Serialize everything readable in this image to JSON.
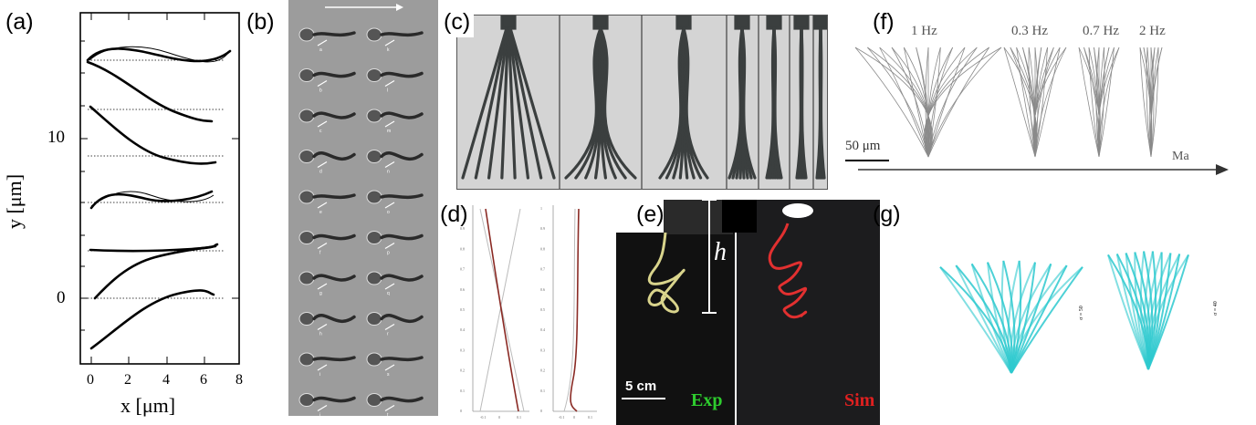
{
  "figure": {
    "panels": {
      "a": {
        "label": "(a)",
        "xlabel": "x [μm]",
        "ylabel": "y [μm]",
        "xticks": [
          "0",
          "2",
          "4",
          "6",
          "8"
        ],
        "yticks": [
          "0",
          "10"
        ]
      },
      "b": {
        "label": "(b)",
        "frames_left": [
          "a",
          "b",
          "c",
          "d",
          "e",
          "f",
          "g",
          "h",
          "i",
          "j"
        ],
        "frames_right": [
          "k",
          "l",
          "m",
          "n",
          "o",
          "p",
          "q",
          "r",
          "s",
          "t"
        ]
      },
      "c": {
        "label": "(c)"
      },
      "d": {
        "label": "(d)",
        "yticks": [
          "1",
          "0.9",
          "0.8",
          "0.7",
          "0.6",
          "0.5",
          "0.4",
          "0.3",
          "0.2",
          "0.1",
          "0"
        ],
        "xticks_left": [
          "-0.1",
          "0",
          "0.1"
        ],
        "xticks_right": [
          "-0.1",
          "0",
          "0.1"
        ]
      },
      "e": {
        "label": "(e)",
        "height_symbol": "h",
        "scale_bar": "5 cm",
        "exp_label": "Exp",
        "sim_label": "Sim"
      },
      "f": {
        "label": "(f)",
        "frequencies": [
          "1 Hz",
          "0.3 Hz",
          "0.7 Hz",
          "2 Hz"
        ],
        "scale_bar": "50 μm",
        "axis_label": "Ma"
      },
      "g": {
        "label": "(g)",
        "side_label_1": "σ = 50",
        "side_label_2": "σ = 40"
      }
    },
    "colors": {
      "exp_label": "#2ecc2e",
      "sim_label": "#e02020",
      "sim_curve": "#e23030",
      "exp_curve": "#d9d48c",
      "rod": "#3b3f3f",
      "cyan": "#2ec9cf",
      "curve_d": "#8a2a24"
    }
  }
}
